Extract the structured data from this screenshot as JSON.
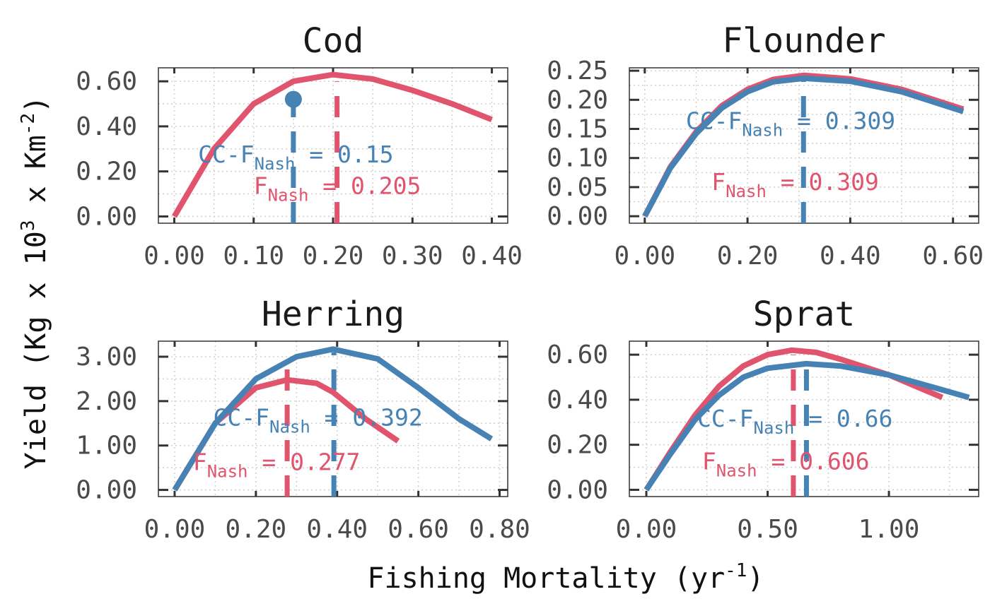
{
  "colors": {
    "nash": "#e0546e",
    "cc": "#4682b4",
    "grid": "#cccccc"
  },
  "chart_data": {
    "type": "line",
    "xlabel": "Fishing Mortality (yr",
    "xlabel_sup": "-1",
    "xlabel_end": ")",
    "ylabel": "Yield (Kg x 10",
    "ylabel_sup": "3",
    "ylabel_mid": " x Km",
    "ylabel_sup2": "-2",
    "ylabel_end": ")",
    "panels": [
      {
        "title": "Cod",
        "xlim": [
          -0.02,
          0.42
        ],
        "ylim": [
          -0.03,
          0.66
        ],
        "xticks": [
          0,
          0.1,
          0.2,
          0.3,
          0.4
        ],
        "xticklabels": [
          "0.00",
          "0.10",
          "0.20",
          "0.30",
          "0.40"
        ],
        "yticks": [
          0,
          0.2,
          0.4,
          0.6
        ],
        "yticklabels": [
          "0.00",
          "0.20",
          "0.40",
          "0.60"
        ],
        "series": [
          {
            "name": "F_Nash",
            "color": "#e0546e",
            "x": [
              0,
              0.05,
              0.1,
              0.15,
              0.2,
              0.25,
              0.3,
              0.35,
              0.4
            ],
            "y": [
              0,
              0.3,
              0.5,
              0.6,
              0.63,
              0.61,
              0.56,
              0.5,
              0.43
            ]
          }
        ],
        "point": {
          "x": 0.15,
          "y": 0.52,
          "color": "#4682b4"
        },
        "vlines": [
          {
            "x": 0.15,
            "color": "#4682b4",
            "top": 0.6
          },
          {
            "x": 0.205,
            "color": "#e0546e",
            "top": 0.6
          }
        ],
        "annotations": [
          {
            "pre": "CC-F",
            "sub": "Nash",
            "post": " = 0.15",
            "color": "#4682b4",
            "x": 0.03,
            "y": 0.24
          },
          {
            "pre": "F",
            "sub": "Nash",
            "post": " = 0.205",
            "color": "#e0546e",
            "x": 0.1,
            "y": 0.1
          }
        ]
      },
      {
        "title": "Flounder",
        "xlim": [
          -0.03,
          0.65
        ],
        "ylim": [
          -0.012,
          0.255
        ],
        "xticks": [
          0,
          0.2,
          0.4,
          0.6
        ],
        "xticklabels": [
          "0.00",
          "0.20",
          "0.40",
          "0.60"
        ],
        "yticks": [
          0,
          0.05,
          0.1,
          0.15,
          0.2,
          0.25
        ],
        "yticklabels": [
          "0.00",
          "0.05",
          "0.10",
          "0.15",
          "0.20",
          "0.25"
        ],
        "series": [
          {
            "name": "F_Nash",
            "color": "#e0546e",
            "x": [
              0,
              0.05,
              0.1,
              0.15,
              0.2,
              0.25,
              0.31,
              0.4,
              0.5,
              0.62
            ],
            "y": [
              0,
              0.085,
              0.145,
              0.19,
              0.218,
              0.235,
              0.242,
              0.236,
              0.218,
              0.184
            ]
          },
          {
            "name": "CC-F_Nash",
            "color": "#4682b4",
            "x": [
              0,
              0.05,
              0.1,
              0.15,
              0.2,
              0.25,
              0.31,
              0.4,
              0.5,
              0.62
            ],
            "y": [
              0,
              0.083,
              0.142,
              0.186,
              0.214,
              0.231,
              0.237,
              0.232,
              0.214,
              0.18
            ]
          }
        ],
        "vlines": [
          {
            "x": 0.309,
            "color": "#4682b4",
            "top": 0.235
          }
        ],
        "annotations": [
          {
            "pre": "CC-F",
            "sub": "Nash",
            "post": " = 0.309",
            "color": "#4682b4",
            "x": 0.08,
            "y": 0.15
          },
          {
            "pre": "F",
            "sub": "Nash",
            "post": " = 0.309",
            "color": "#e0546e",
            "x": 0.13,
            "y": 0.045
          }
        ]
      },
      {
        "title": "Herring",
        "xlim": [
          -0.04,
          0.82
        ],
        "ylim": [
          -0.15,
          3.35
        ],
        "xticks": [
          0,
          0.2,
          0.4,
          0.6,
          0.8
        ],
        "xticklabels": [
          "0.00",
          "0.20",
          "0.40",
          "0.60",
          "0.80"
        ],
        "yticks": [
          0,
          1,
          2,
          3
        ],
        "yticklabels": [
          "0.00",
          "1.00",
          "2.00",
          "3.00"
        ],
        "series": [
          {
            "name": "F_Nash",
            "color": "#e0546e",
            "x": [
              0,
              0.1,
              0.2,
              0.277,
              0.35,
              0.39,
              0.47,
              0.55
            ],
            "y": [
              0,
              1.5,
              2.3,
              2.48,
              2.4,
              2.2,
              1.6,
              1.1
            ]
          },
          {
            "name": "CC-F_Nash",
            "color": "#4682b4",
            "x": [
              0,
              0.1,
              0.2,
              0.3,
              0.39,
              0.5,
              0.6,
              0.7,
              0.78
            ],
            "y": [
              0,
              1.5,
              2.5,
              3.0,
              3.17,
              2.95,
              2.3,
              1.6,
              1.15
            ]
          }
        ],
        "vlines": [
          {
            "x": 0.277,
            "color": "#e0546e",
            "top": 3.0
          },
          {
            "x": 0.392,
            "color": "#4682b4",
            "top": 3.1
          }
        ],
        "annotations": [
          {
            "pre": "CC-F",
            "sub": "Nash",
            "post": " = 0.392",
            "color": "#4682b4",
            "x": 0.095,
            "y": 1.45
          },
          {
            "pre": "F",
            "sub": "Nash",
            "post": " = 0.277",
            "color": "#e0546e",
            "x": 0.045,
            "y": 0.45
          }
        ]
      },
      {
        "title": "Sprat",
        "xlim": [
          -0.07,
          1.37
        ],
        "ylim": [
          -0.03,
          0.66
        ],
        "xticks": [
          0,
          0.5,
          1.0
        ],
        "xticklabels": [
          "0.00",
          "0.50",
          "1.00"
        ],
        "yticks": [
          0,
          0.2,
          0.4,
          0.6
        ],
        "yticklabels": [
          "0.00",
          "0.20",
          "0.40",
          "0.60"
        ],
        "series": [
          {
            "name": "F_Nash",
            "color": "#e0546e",
            "x": [
              0,
              0.1,
              0.2,
              0.3,
              0.4,
              0.5,
              0.6,
              0.7,
              0.8,
              1.0,
              1.22
            ],
            "y": [
              0,
              0.17,
              0.33,
              0.46,
              0.55,
              0.6,
              0.62,
              0.61,
              0.58,
              0.51,
              0.41
            ]
          },
          {
            "name": "CC-F_Nash",
            "color": "#4682b4",
            "x": [
              0,
              0.1,
              0.2,
              0.3,
              0.4,
              0.5,
              0.66,
              0.8,
              1.0,
              1.2,
              1.33
            ],
            "y": [
              0,
              0.16,
              0.31,
              0.42,
              0.5,
              0.54,
              0.56,
              0.55,
              0.51,
              0.45,
              0.41
            ]
          }
        ],
        "vlines": [
          {
            "x": 0.606,
            "color": "#e0546e",
            "top": 0.6
          },
          {
            "x": 0.66,
            "color": "#4682b4",
            "top": 0.55
          }
        ],
        "annotations": [
          {
            "pre": "CC-F",
            "sub": "Nash",
            "post": " = 0.66",
            "color": "#4682b4",
            "x": 0.21,
            "y": 0.28
          },
          {
            "pre": "F",
            "sub": "Nash",
            "post": " = 0.606",
            "color": "#e0546e",
            "x": 0.23,
            "y": 0.09
          }
        ]
      }
    ]
  }
}
